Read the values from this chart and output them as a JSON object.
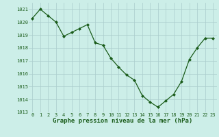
{
  "x": [
    0,
    1,
    2,
    3,
    4,
    5,
    6,
    7,
    8,
    9,
    10,
    11,
    12,
    13,
    14,
    15,
    16,
    17,
    18,
    19,
    20,
    21,
    22,
    23
  ],
  "y": [
    1020.3,
    1021.0,
    1020.5,
    1020.0,
    1018.9,
    1019.2,
    1019.5,
    1019.8,
    1018.4,
    1018.2,
    1017.2,
    1016.5,
    1015.9,
    1015.5,
    1014.3,
    1013.8,
    1013.4,
    1013.9,
    1014.4,
    1015.4,
    1017.1,
    1018.0,
    1018.75,
    1018.75
  ],
  "line_color": "#1a5c1a",
  "marker": "D",
  "marker_size": 2.0,
  "linewidth": 0.9,
  "bg_color": "#cceee8",
  "grid_color": "#aacccc",
  "ylim": [
    1013,
    1021.5
  ],
  "yticks": [
    1013,
    1014,
    1015,
    1016,
    1017,
    1018,
    1019,
    1020,
    1021
  ],
  "xtick_labels": [
    "0",
    "1",
    "2",
    "3",
    "4",
    "5",
    "6",
    "7",
    "8",
    "9",
    "1011",
    "1213",
    "1415",
    "1617",
    "1819",
    "2021",
    "2223"
  ],
  "xlabel": "Graphe pression niveau de la mer (hPa)",
  "xlabel_fontsize": 6.5,
  "tick_fontsize": 5.0,
  "ytick_fontsize": 5.0,
  "tick_color": "#1a5c1a"
}
